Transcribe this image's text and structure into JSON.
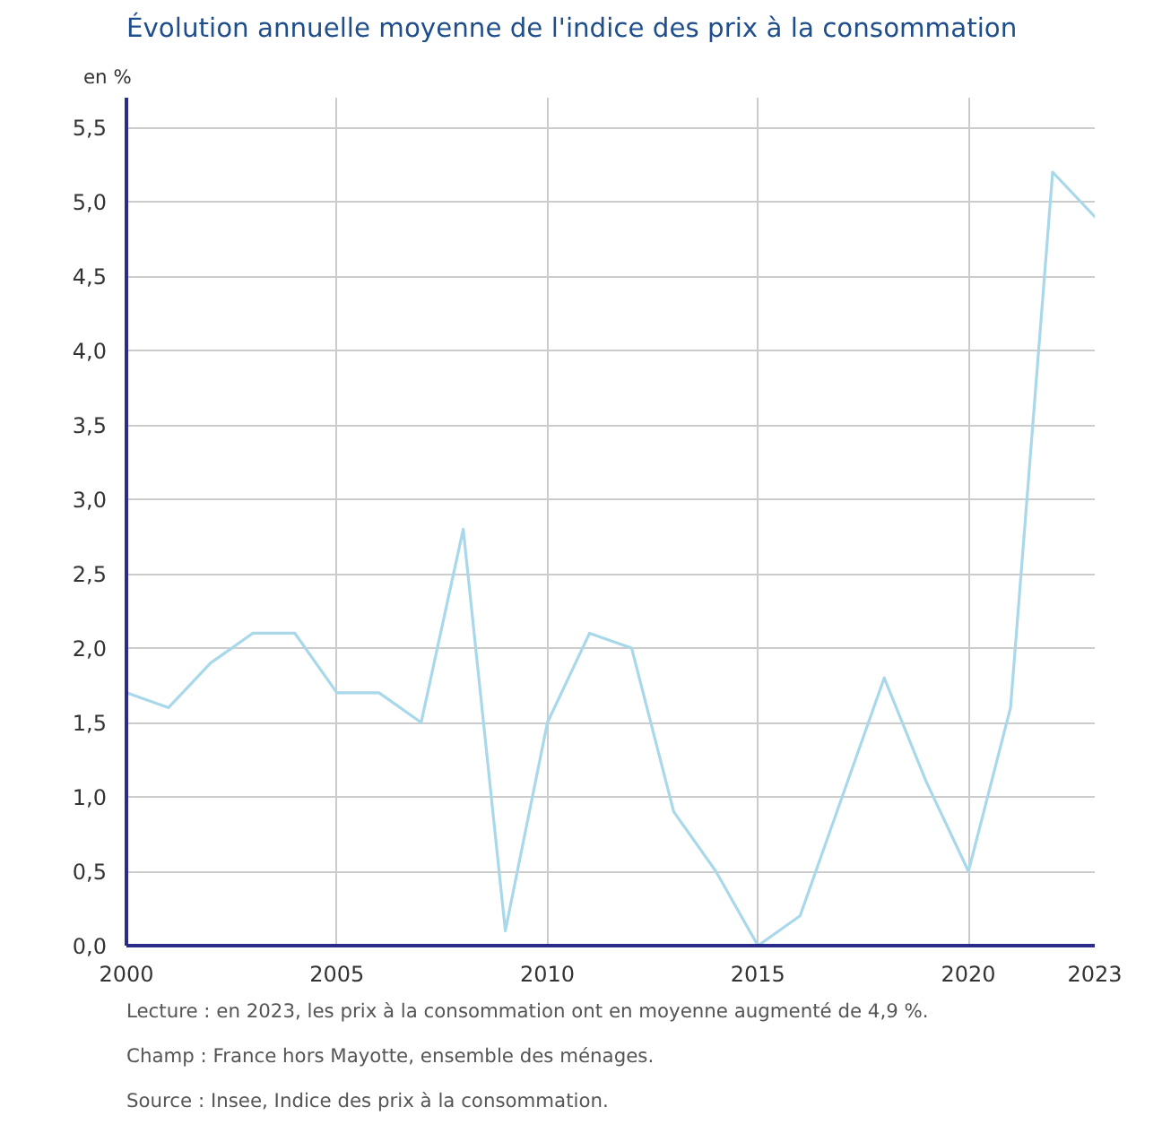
{
  "chart_data": {
    "type": "line",
    "title": "Évolution annuelle moyenne de l'indice des prix à la consommation",
    "ylabel": "en %",
    "x": [
      2000,
      2001,
      2002,
      2003,
      2004,
      2005,
      2006,
      2007,
      2008,
      2009,
      2010,
      2011,
      2012,
      2013,
      2014,
      2015,
      2016,
      2017,
      2018,
      2019,
      2020,
      2021,
      2022,
      2023
    ],
    "series": [
      {
        "color": "#a8d8ea",
        "values": [
          1.7,
          1.6,
          1.9,
          2.1,
          2.1,
          1.7,
          1.7,
          1.5,
          2.8,
          0.1,
          1.5,
          2.1,
          2.0,
          0.9,
          0.5,
          0.0,
          0.2,
          1.0,
          1.8,
          1.1,
          0.5,
          1.6,
          5.2,
          4.9
        ]
      }
    ],
    "xlim": [
      2000,
      2023
    ],
    "xticks": [
      2000,
      2005,
      2010,
      2015,
      2020,
      2023
    ],
    "ylim": [
      0,
      5.7
    ],
    "yticks": [
      {
        "value": 0,
        "label": "0,0"
      },
      {
        "value": 0.5,
        "label": "0,5"
      },
      {
        "value": 1,
        "label": "1,0"
      },
      {
        "value": 1.5,
        "label": "1,5"
      },
      {
        "value": 2,
        "label": "2,0"
      },
      {
        "value": 2.5,
        "label": "2,5"
      },
      {
        "value": 3,
        "label": "3,0"
      },
      {
        "value": 3.5,
        "label": "3,5"
      },
      {
        "value": 4,
        "label": "4,0"
      },
      {
        "value": 4.5,
        "label": "4,5"
      },
      {
        "value": 5,
        "label": "5,0"
      },
      {
        "value": 5.5,
        "label": "5,5"
      }
    ],
    "grid": true,
    "marker": "none",
    "line_style": "solid",
    "annotations": [
      "Lecture : en 2023, les prix à la consommation ont en moyenne augmenté de 4,9 %.",
      "Champ : France hors Mayotte, ensemble des ménages.",
      "Source : Insee, Indice des prix à la consommation."
    ]
  }
}
